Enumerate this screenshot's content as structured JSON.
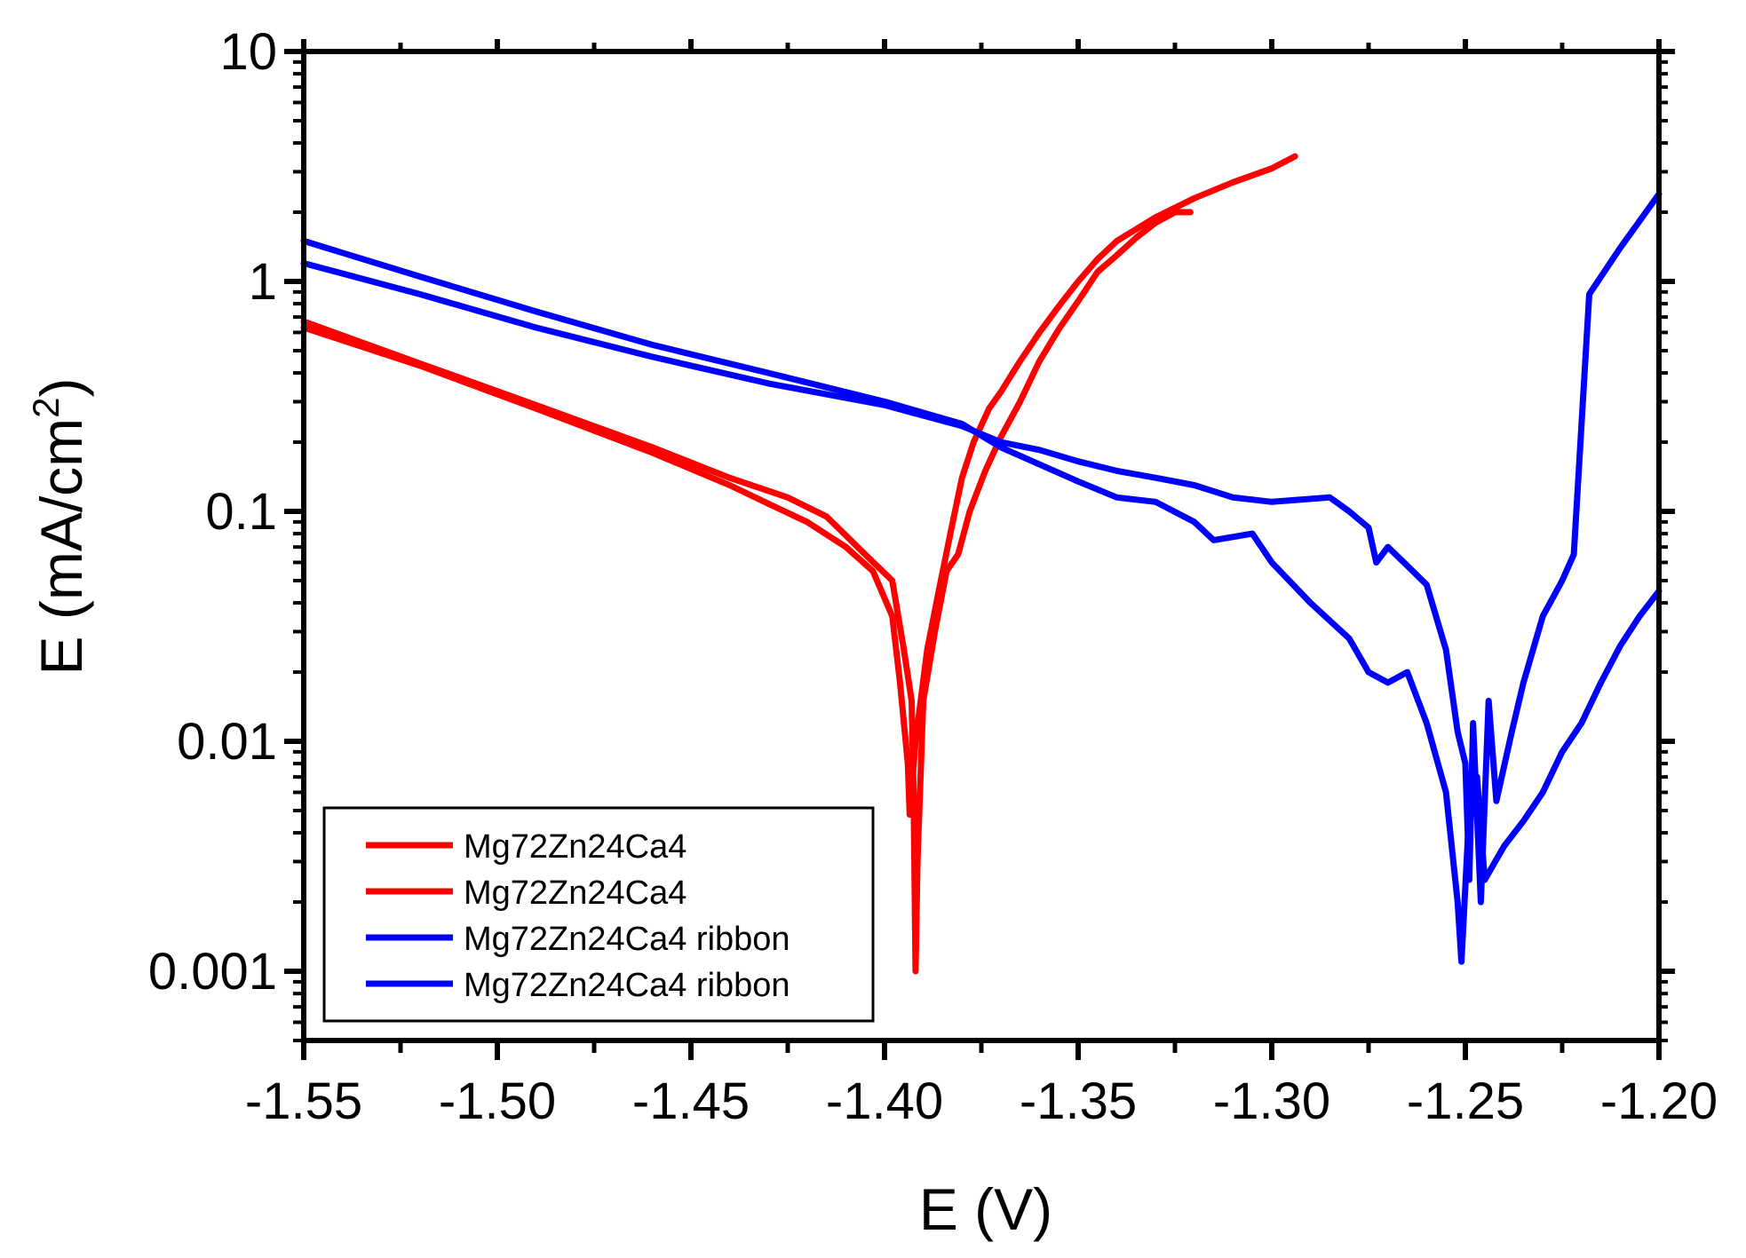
{
  "chart_data": {
    "type": "line",
    "xlabel": "E (V)",
    "ylabel_main": "E (mA/cm",
    "ylabel_sup": "2",
    "ylabel_close": ")",
    "yscale": "log",
    "xlim": [
      -1.55,
      -1.2
    ],
    "ylim": [
      0.0005,
      10
    ],
    "x_ticks": [
      -1.55,
      -1.5,
      -1.45,
      -1.4,
      -1.35,
      -1.3,
      -1.25,
      -1.2
    ],
    "x_tick_labels": [
      "-1.55",
      "-1.50",
      "-1.45",
      "-1.40",
      "-1.35",
      "-1.30",
      "-1.25",
      "-1.20"
    ],
    "y_ticks": [
      0.001,
      0.01,
      0.1,
      1,
      10
    ],
    "y_tick_labels": [
      "0.001",
      "0.01",
      "0.1",
      "1",
      "10"
    ],
    "legend_position": "bottom-left",
    "series": [
      {
        "name": "Mg72Zn24Ca4",
        "color": "#ff0000",
        "points": [
          [
            -1.55,
            0.67
          ],
          [
            -1.52,
            0.44
          ],
          [
            -1.49,
            0.29
          ],
          [
            -1.46,
            0.19
          ],
          [
            -1.44,
            0.14
          ],
          [
            -1.425,
            0.115
          ],
          [
            -1.415,
            0.095
          ],
          [
            -1.405,
            0.065
          ],
          [
            -1.398,
            0.05
          ],
          [
            -1.395,
            0.025
          ],
          [
            -1.393,
            0.015
          ],
          [
            -1.3925,
            0.006
          ],
          [
            -1.392,
            0.001
          ],
          [
            -1.3915,
            0.003
          ],
          [
            -1.39,
            0.015
          ],
          [
            -1.387,
            0.03
          ],
          [
            -1.384,
            0.055
          ],
          [
            -1.381,
            0.065
          ],
          [
            -1.378,
            0.1
          ],
          [
            -1.374,
            0.15
          ],
          [
            -1.37,
            0.21
          ],
          [
            -1.365,
            0.3
          ],
          [
            -1.36,
            0.45
          ],
          [
            -1.355,
            0.62
          ],
          [
            -1.35,
            0.82
          ],
          [
            -1.345,
            1.1
          ],
          [
            -1.34,
            1.3
          ],
          [
            -1.335,
            1.55
          ],
          [
            -1.33,
            1.8
          ],
          [
            -1.325,
            2.0
          ],
          [
            -1.321,
            2.0
          ]
        ]
      },
      {
        "name": "Mg72Zn24Ca4",
        "color": "#ff0000",
        "points": [
          [
            -1.55,
            0.63
          ],
          [
            -1.52,
            0.43
          ],
          [
            -1.49,
            0.28
          ],
          [
            -1.46,
            0.18
          ],
          [
            -1.44,
            0.13
          ],
          [
            -1.43,
            0.108
          ],
          [
            -1.42,
            0.09
          ],
          [
            -1.41,
            0.07
          ],
          [
            -1.403,
            0.055
          ],
          [
            -1.398,
            0.035
          ],
          [
            -1.396,
            0.018
          ],
          [
            -1.394,
            0.008
          ],
          [
            -1.3935,
            0.0048
          ],
          [
            -1.392,
            0.01
          ],
          [
            -1.389,
            0.025
          ],
          [
            -1.386,
            0.045
          ],
          [
            -1.383,
            0.08
          ],
          [
            -1.38,
            0.14
          ],
          [
            -1.377,
            0.2
          ],
          [
            -1.373,
            0.28
          ],
          [
            -1.37,
            0.33
          ],
          [
            -1.365,
            0.45
          ],
          [
            -1.36,
            0.6
          ],
          [
            -1.355,
            0.78
          ],
          [
            -1.35,
            1.0
          ],
          [
            -1.345,
            1.25
          ],
          [
            -1.34,
            1.5
          ],
          [
            -1.33,
            1.9
          ],
          [
            -1.32,
            2.3
          ],
          [
            -1.31,
            2.7
          ],
          [
            -1.3,
            3.1
          ],
          [
            -1.294,
            3.5
          ]
        ]
      },
      {
        "name": "Mg72Zn24Ca4 ribbon",
        "color": "#0000ff",
        "points": [
          [
            -1.55,
            1.2
          ],
          [
            -1.52,
            0.88
          ],
          [
            -1.49,
            0.63
          ],
          [
            -1.46,
            0.47
          ],
          [
            -1.43,
            0.36
          ],
          [
            -1.4,
            0.29
          ],
          [
            -1.38,
            0.235
          ],
          [
            -1.37,
            0.2
          ],
          [
            -1.36,
            0.185
          ],
          [
            -1.35,
            0.165
          ],
          [
            -1.34,
            0.15
          ],
          [
            -1.33,
            0.14
          ],
          [
            -1.32,
            0.13
          ],
          [
            -1.31,
            0.115
          ],
          [
            -1.3,
            0.11
          ],
          [
            -1.285,
            0.115
          ],
          [
            -1.28,
            0.1
          ],
          [
            -1.275,
            0.085
          ],
          [
            -1.273,
            0.06
          ],
          [
            -1.27,
            0.07
          ],
          [
            -1.265,
            0.058
          ],
          [
            -1.26,
            0.048
          ],
          [
            -1.255,
            0.025
          ],
          [
            -1.252,
            0.011
          ],
          [
            -1.25,
            0.008
          ],
          [
            -1.249,
            0.0025
          ],
          [
            -1.248,
            0.012
          ],
          [
            -1.246,
            0.002
          ],
          [
            -1.244,
            0.015
          ],
          [
            -1.242,
            0.0055
          ],
          [
            -1.238,
            0.011
          ],
          [
            -1.235,
            0.018
          ],
          [
            -1.23,
            0.035
          ],
          [
            -1.225,
            0.05
          ],
          [
            -1.222,
            0.065
          ],
          [
            -1.218,
            0.88
          ],
          [
            -1.21,
            1.4
          ],
          [
            -1.2,
            2.4
          ]
        ]
      },
      {
        "name": "Mg72Zn24Ca4 ribbon",
        "color": "#0000ff",
        "points": [
          [
            -1.55,
            1.5
          ],
          [
            -1.52,
            1.05
          ],
          [
            -1.49,
            0.74
          ],
          [
            -1.46,
            0.53
          ],
          [
            -1.43,
            0.4
          ],
          [
            -1.4,
            0.3
          ],
          [
            -1.38,
            0.24
          ],
          [
            -1.37,
            0.19
          ],
          [
            -1.36,
            0.16
          ],
          [
            -1.35,
            0.135
          ],
          [
            -1.34,
            0.115
          ],
          [
            -1.33,
            0.11
          ],
          [
            -1.32,
            0.09
          ],
          [
            -1.315,
            0.075
          ],
          [
            -1.305,
            0.08
          ],
          [
            -1.3,
            0.06
          ],
          [
            -1.29,
            0.04
          ],
          [
            -1.28,
            0.028
          ],
          [
            -1.275,
            0.02
          ],
          [
            -1.27,
            0.018
          ],
          [
            -1.265,
            0.02
          ],
          [
            -1.26,
            0.012
          ],
          [
            -1.255,
            0.006
          ],
          [
            -1.252,
            0.002
          ],
          [
            -1.251,
            0.0011
          ],
          [
            -1.249,
            0.005
          ],
          [
            -1.247,
            0.007
          ],
          [
            -1.245,
            0.0025
          ],
          [
            -1.24,
            0.0035
          ],
          [
            -1.235,
            0.0045
          ],
          [
            -1.23,
            0.006
          ],
          [
            -1.225,
            0.009
          ],
          [
            -1.22,
            0.012
          ],
          [
            -1.215,
            0.018
          ],
          [
            -1.21,
            0.026
          ],
          [
            -1.205,
            0.035
          ],
          [
            -1.2,
            0.045
          ]
        ]
      }
    ]
  }
}
